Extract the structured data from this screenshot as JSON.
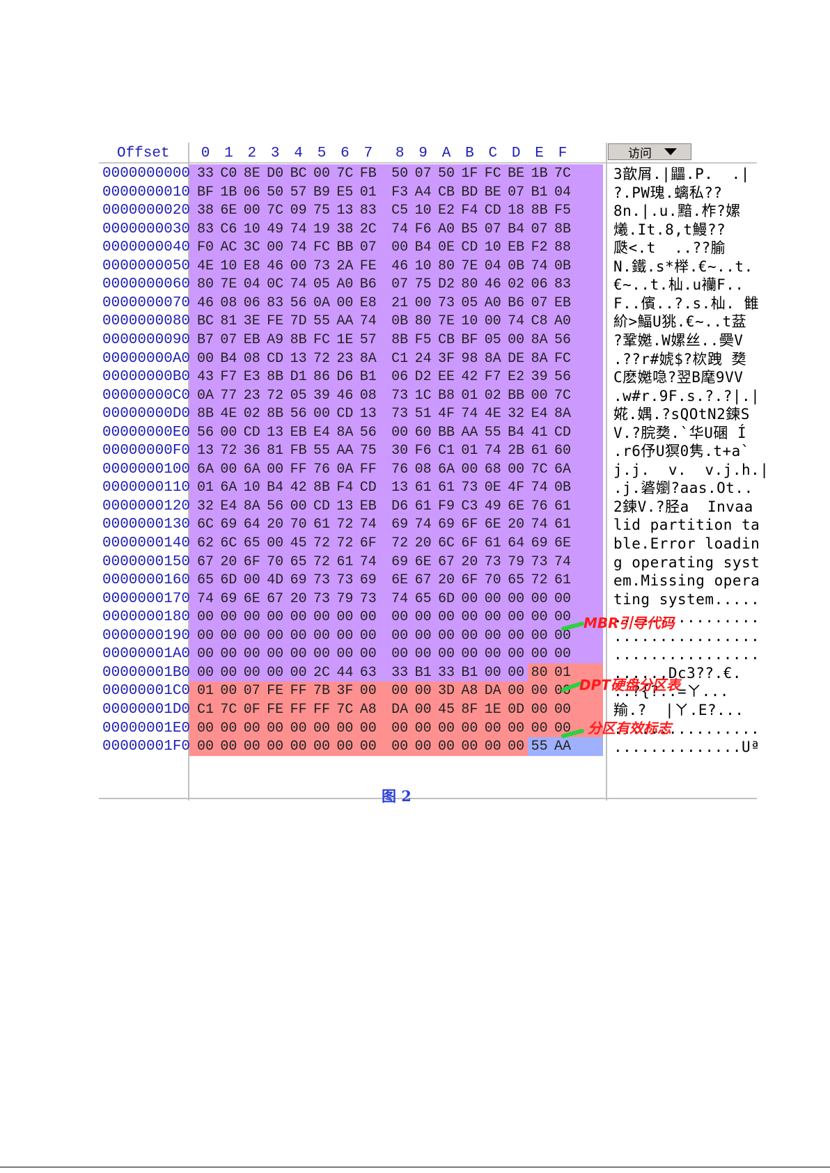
{
  "header": {
    "offset_label": "Offset",
    "columns": [
      "0",
      "1",
      "2",
      "3",
      "4",
      "5",
      "6",
      "7",
      "8",
      "9",
      "A",
      "B",
      "C",
      "D",
      "E",
      "F"
    ],
    "access_button": "访问"
  },
  "rows": [
    {
      "offset": "0000000000",
      "hex": [
        "33",
        "C0",
        "8E",
        "D0",
        "BC",
        "00",
        "7C",
        "FB",
        "50",
        "07",
        "50",
        "1F",
        "FC",
        "BE",
        "1B",
        "7C"
      ],
      "ascii": "3歆屑.|鼺.P.  .|"
    },
    {
      "offset": "0000000010",
      "hex": [
        "BF",
        "1B",
        "06",
        "50",
        "57",
        "B9",
        "E5",
        "01",
        "F3",
        "A4",
        "CB",
        "BD",
        "BE",
        "07",
        "B1",
        "04"
      ],
      "ascii": "?.PW瑰.螭私??"
    },
    {
      "offset": "0000000020",
      "hex": [
        "38",
        "6E",
        "00",
        "7C",
        "09",
        "75",
        "13",
        "83",
        "C5",
        "10",
        "E2",
        "F4",
        "CD",
        "18",
        "8B",
        "F5"
      ],
      "ascii": "8n.|.u.黯.柞?嫘"
    },
    {
      "offset": "0000000030",
      "hex": [
        "83",
        "C6",
        "10",
        "49",
        "74",
        "19",
        "38",
        "2C",
        "74",
        "F6",
        "A0",
        "B5",
        "07",
        "B4",
        "07",
        "8B"
      ],
      "ascii": "爔.It.8,t鰻??"
    },
    {
      "offset": "0000000040",
      "hex": [
        "F0",
        "AC",
        "3C",
        "00",
        "74",
        "FC",
        "BB",
        "07",
        "00",
        "B4",
        "0E",
        "CD",
        "10",
        "EB",
        "F2",
        "88"
      ],
      "ascii": "瓞<.t  ..??腧"
    },
    {
      "offset": "0000000050",
      "hex": [
        "4E",
        "10",
        "E8",
        "46",
        "00",
        "73",
        "2A",
        "FE",
        "46",
        "10",
        "80",
        "7E",
        "04",
        "0B",
        "74",
        "0B"
      ],
      "ascii": "N.鐵.s*榉.€~..t."
    },
    {
      "offset": "0000000060",
      "hex": [
        "80",
        "7E",
        "04",
        "0C",
        "74",
        "05",
        "A0",
        "B6",
        "07",
        "75",
        "D2",
        "80",
        "46",
        "02",
        "06",
        "83"
      ],
      "ascii": "€~..t.杣.u襽F.."
    },
    {
      "offset": "0000000070",
      "hex": [
        "46",
        "08",
        "06",
        "83",
        "56",
        "0A",
        "00",
        "E8",
        "21",
        "00",
        "73",
        "05",
        "A0",
        "B6",
        "07",
        "EB"
      ],
      "ascii": "F..儐..?.s.杣. 雔"
    },
    {
      "offset": "0000000080",
      "hex": [
        "BC",
        "81",
        "3E",
        "FE",
        "7D",
        "55",
        "AA",
        "74",
        "0B",
        "80",
        "7E",
        "10",
        "00",
        "74",
        "C8",
        "A0"
      ],
      "ascii": "紒>鰏U狣.€~..t葐"
    },
    {
      "offset": "0000000090",
      "hex": [
        "B7",
        "07",
        "EB",
        "A9",
        "8B",
        "FC",
        "1E",
        "57",
        "8B",
        "F5",
        "CB",
        "BF",
        "05",
        "00",
        "8A",
        "56"
      ],
      "ascii": "?鞏嬔.W嫘丝..奰V"
    },
    {
      "offset": "00000000A0",
      "hex": [
        "00",
        "B4",
        "08",
        "CD",
        "13",
        "72",
        "23",
        "8A",
        "C1",
        "24",
        "3F",
        "98",
        "8A",
        "DE",
        "8A",
        "FC"
      ],
      "ascii": ".??r#婋$?栨跩 奦"
    },
    {
      "offset": "00000000B0",
      "hex": [
        "43",
        "F7",
        "E3",
        "8B",
        "D1",
        "86",
        "D6",
        "B1",
        "06",
        "D2",
        "EE",
        "42",
        "F7",
        "E2",
        "39",
        "56"
      ],
      "ascii": "C麽嬔喼?翌B麾9VV"
    },
    {
      "offset": "00000000C0",
      "hex": [
        "0A",
        "77",
        "23",
        "72",
        "05",
        "39",
        "46",
        "08",
        "73",
        "1C",
        "B8",
        "01",
        "02",
        "BB",
        "00",
        "7C"
      ],
      "ascii": ".w#r.9F.s.?.?|.|"
    },
    {
      "offset": "00000000D0",
      "hex": [
        "8B",
        "4E",
        "02",
        "8B",
        "56",
        "00",
        "CD",
        "13",
        "73",
        "51",
        "4F",
        "74",
        "4E",
        "32",
        "E4",
        "8A"
      ],
      "ascii": "婲.媀.?sQOtN2鍊S"
    },
    {
      "offset": "00000000E0",
      "hex": [
        "56",
        "00",
        "CD",
        "13",
        "EB",
        "E4",
        "8A",
        "56",
        "00",
        "60",
        "BB",
        "AA",
        "55",
        "B4",
        "41",
        "CD"
      ],
      "ascii": "V.?脘奦.`华U碅 Í"
    },
    {
      "offset": "00000000F0",
      "hex": [
        "13",
        "72",
        "36",
        "81",
        "FB",
        "55",
        "AA",
        "75",
        "30",
        "F6",
        "C1",
        "01",
        "74",
        "2B",
        "61",
        "60"
      ],
      "ascii": ".r6伃U猽0隽.t+a`"
    },
    {
      "offset": "0000000100",
      "hex": [
        "6A",
        "00",
        "6A",
        "00",
        "FF",
        "76",
        "0A",
        "FF",
        "76",
        "08",
        "6A",
        "00",
        "68",
        "00",
        "7C",
        "6A"
      ],
      "ascii": "j.j.  v.  v.j.h.|"
    },
    {
      "offset": "0000000110",
      "hex": [
        "01",
        "6A",
        "10",
        "B4",
        "42",
        "8B",
        "F4",
        "CD",
        "13",
        "61",
        "61",
        "73",
        "0E",
        "4F",
        "74",
        "0B"
      ],
      "ascii": ".j.碆嬼?aas.Ot.."
    },
    {
      "offset": "0000000120",
      "hex": [
        "32",
        "E4",
        "8A",
        "56",
        "00",
        "CD",
        "13",
        "EB",
        "D6",
        "61",
        "F9",
        "C3",
        "49",
        "6E",
        "76",
        "61"
      ],
      "ascii": "2鍊V.?胫a  Invaa"
    },
    {
      "offset": "0000000130",
      "hex": [
        "6C",
        "69",
        "64",
        "20",
        "70",
        "61",
        "72",
        "74",
        "69",
        "74",
        "69",
        "6F",
        "6E",
        "20",
        "74",
        "61"
      ],
      "ascii": "lid partition ta"
    },
    {
      "offset": "0000000140",
      "hex": [
        "62",
        "6C",
        "65",
        "00",
        "45",
        "72",
        "72",
        "6F",
        "72",
        "20",
        "6C",
        "6F",
        "61",
        "64",
        "69",
        "6E"
      ],
      "ascii": "ble.Error loadin"
    },
    {
      "offset": "0000000150",
      "hex": [
        "67",
        "20",
        "6F",
        "70",
        "65",
        "72",
        "61",
        "74",
        "69",
        "6E",
        "67",
        "20",
        "73",
        "79",
        "73",
        "74"
      ],
      "ascii": "g operating syst"
    },
    {
      "offset": "0000000160",
      "hex": [
        "65",
        "6D",
        "00",
        "4D",
        "69",
        "73",
        "73",
        "69",
        "6E",
        "67",
        "20",
        "6F",
        "70",
        "65",
        "72",
        "61"
      ],
      "ascii": "em.Missing opera"
    },
    {
      "offset": "0000000170",
      "hex": [
        "74",
        "69",
        "6E",
        "67",
        "20",
        "73",
        "79",
        "73",
        "74",
        "65",
        "6D",
        "00",
        "00",
        "00",
        "00",
        "00"
      ],
      "ascii": "ting system....."
    },
    {
      "offset": "0000000180",
      "hex": [
        "00",
        "00",
        "00",
        "00",
        "00",
        "00",
        "00",
        "00",
        "00",
        "00",
        "00",
        "00",
        "00",
        "00",
        "00",
        "00"
      ],
      "ascii": "................"
    },
    {
      "offset": "0000000190",
      "hex": [
        "00",
        "00",
        "00",
        "00",
        "00",
        "00",
        "00",
        "00",
        "00",
        "00",
        "00",
        "00",
        "00",
        "00",
        "00",
        "00"
      ],
      "ascii": "................"
    },
    {
      "offset": "00000001A0",
      "hex": [
        "00",
        "00",
        "00",
        "00",
        "00",
        "00",
        "00",
        "00",
        "00",
        "00",
        "00",
        "00",
        "00",
        "00",
        "00",
        "00"
      ],
      "ascii": "................"
    },
    {
      "offset": "00000001B0",
      "hex": [
        "00",
        "00",
        "00",
        "00",
        "00",
        "2C",
        "44",
        "63",
        "33",
        "B1",
        "33",
        "B1",
        "00",
        "00",
        "80",
        "01"
      ],
      "ascii": ".....,Dc3??.€."
    },
    {
      "offset": "00000001C0",
      "hex": [
        "01",
        "00",
        "07",
        "FE",
        "FF",
        "7B",
        "3F",
        "00",
        "00",
        "00",
        "3D",
        "A8",
        "DA",
        "00",
        "00",
        "00"
      ],
      "ascii": "..?{?..=ㄚ..."
    },
    {
      "offset": "00000001D0",
      "hex": [
        "C1",
        "7C",
        "0F",
        "FE",
        "FF",
        "FF",
        "7C",
        "A8",
        "DA",
        "00",
        "45",
        "8F",
        "1E",
        "0D",
        "00",
        "00"
      ],
      "ascii": "羭.?  |ㄚ.E?..."
    },
    {
      "offset": "00000001E0",
      "hex": [
        "00",
        "00",
        "00",
        "00",
        "00",
        "00",
        "00",
        "00",
        "00",
        "00",
        "00",
        "00",
        "00",
        "00",
        "00",
        "00"
      ],
      "ascii": "................"
    },
    {
      "offset": "00000001F0",
      "hex": [
        "00",
        "00",
        "00",
        "00",
        "00",
        "00",
        "00",
        "00",
        "00",
        "00",
        "00",
        "00",
        "00",
        "00",
        "55",
        "AA"
      ],
      "ascii": "..............Uª"
    }
  ],
  "annotations": {
    "mbr": "MBR引导代码",
    "dpt": "DPT硬盘分区表",
    "signature": "分区有效标志"
  },
  "caption": "图 2",
  "colors": {
    "mbr_region": "#cc99ff",
    "dpt_region": "#ff9090",
    "signature_region": "#9fb0ff",
    "label_text": "#1f1fb4",
    "annotation_text": "#ff1a1a",
    "arrow": "#2ed040"
  }
}
